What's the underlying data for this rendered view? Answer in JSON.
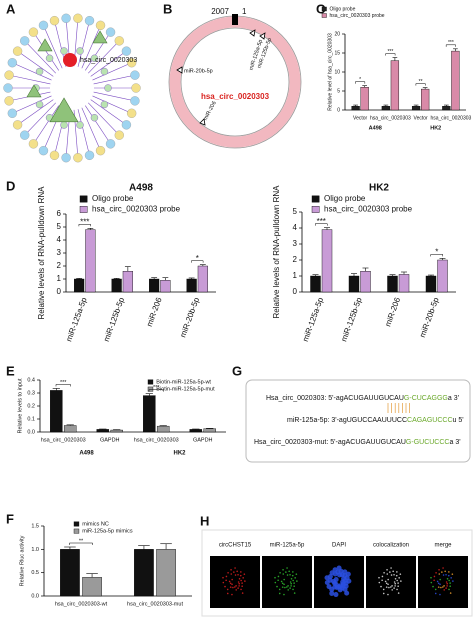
{
  "panel_labels": [
    "A",
    "B",
    "C",
    "D",
    "E",
    "F",
    "G",
    "H"
  ],
  "network": {
    "center_label": "hsa_circ_0020303"
  },
  "circle_map": {
    "start": "2007",
    "end": "1",
    "center_label": "hsa_circ_0020303",
    "sites": [
      "miR-125a-5p",
      "miR-125b-5p",
      "miR-20b-5p",
      "miR-206"
    ]
  },
  "sequence": {
    "rows": [
      {
        "name": "Hsa_circ_0020303:",
        "prefix": "5'-agACUGAUUGUCAU",
        "site": "G-CUCAGGG",
        "suffix": "a  3'"
      },
      {
        "name": "miR-125a-5p:",
        "prefix": "3'-agUGUCCAAUUUCC",
        "site": "CAGAGUCCC",
        "suffix": "u  5'"
      },
      {
        "name": "Hsa_circ_0020303-mut:",
        "prefix": "5'-agACUGAUUGUCAU",
        "site": "G-GUCUCCC",
        "suffix": "a  3'"
      }
    ]
  },
  "images": {
    "labels": [
      "circCHST15",
      "miR-125a-5p",
      "DAPI",
      "colocalization",
      "merge"
    ]
  },
  "chart_data": [
    {
      "type": "bar",
      "ylabel": "Relative level of hsa_circ_0020303",
      "categories": [
        "Vector",
        "hsa_circ_0020303",
        "Vector",
        "hsa_circ_0020303"
      ],
      "groups": [
        "A498",
        "HK2"
      ],
      "series": [
        {
          "name": "Oligo probe",
          "color": "#222222",
          "values": [
            1,
            1,
            1,
            1
          ],
          "errors": [
            0.3,
            0.3,
            0.3,
            0.3
          ]
        },
        {
          "name": "hsa_circ_0020303 probe",
          "color": "#d98aa8",
          "values": [
            6,
            13,
            5.5,
            15.5
          ],
          "errors": [
            0.4,
            0.8,
            0.4,
            0.6
          ]
        }
      ],
      "significance": [
        "*",
        "***",
        "**",
        "***"
      ],
      "ylim": [
        0,
        20
      ],
      "yticks": [
        0,
        5,
        10,
        15,
        20
      ]
    },
    {
      "type": "bar",
      "title": "A498",
      "ylabel": "Relative  levels of RNA-pulldown RNA",
      "categories": [
        "miR-125a-5p",
        "miR-125b-5p",
        "miR-206",
        "miR-20b-5p"
      ],
      "series": [
        {
          "name": "Oligo probe",
          "color": "#111111",
          "values": [
            1,
            1,
            1,
            1
          ],
          "errors": [
            0.05,
            0.05,
            0.1,
            0.08
          ]
        },
        {
          "name": "hsa_circ_0020303 probe",
          "color": "#c89bd6",
          "values": [
            4.8,
            1.6,
            0.9,
            2.0
          ],
          "errors": [
            0.1,
            0.35,
            0.2,
            0.1
          ]
        }
      ],
      "significance": [
        "***",
        null,
        null,
        "*"
      ],
      "ylim": [
        0,
        6
      ],
      "yticks": [
        0,
        1,
        2,
        3,
        4,
        5,
        6
      ]
    },
    {
      "type": "bar",
      "title": "HK2",
      "ylabel": "Relative  levels of RNA-pulldown RNA",
      "categories": [
        "miR-125a-5p",
        "miR-125b-5p",
        "miR-206",
        "miR-20b-5p"
      ],
      "series": [
        {
          "name": "Oligo probe",
          "color": "#111111",
          "values": [
            1,
            1,
            1,
            1
          ],
          "errors": [
            0.08,
            0.15,
            0.08,
            0.06
          ]
        },
        {
          "name": "hsa_circ_0020303 probe",
          "color": "#c89bd6",
          "values": [
            3.9,
            1.3,
            1.1,
            2.0
          ],
          "errors": [
            0.12,
            0.2,
            0.15,
            0.1
          ]
        }
      ],
      "significance": [
        "***",
        null,
        null,
        "*"
      ],
      "ylim": [
        0,
        5
      ],
      "yticks": [
        0,
        1,
        2,
        3,
        4,
        5
      ]
    },
    {
      "type": "bar",
      "ylabel": "Relative levels to input",
      "categories": [
        "hsa_circ_0020303",
        "GAPDH",
        "hsa_circ_0020303",
        "GAPDH"
      ],
      "groups": [
        "A498",
        "HK2"
      ],
      "series": [
        {
          "name": "Biotin-miR-125a-5p-wt",
          "color": "#111111",
          "values": [
            0.32,
            0.02,
            0.28,
            0.02
          ],
          "errors": [
            0.015,
            0.003,
            0.015,
            0.003
          ]
        },
        {
          "name": "Biotin-miR-125a-5p-mut",
          "color": "#999999",
          "values": [
            0.05,
            0.015,
            0.045,
            0.025
          ],
          "errors": [
            0.005,
            0.003,
            0.004,
            0.003
          ]
        }
      ],
      "significance": [
        "***",
        null,
        "***",
        null
      ],
      "ylim": [
        0,
        0.4
      ],
      "yticks": [
        {
          "value": 0,
          "label": "0.0"
        },
        0.1,
        0.2,
        0.3,
        0.4
      ]
    },
    {
      "type": "bar",
      "ylabel": "Relative Rluc activity",
      "categories": [
        "hsa_circ_0020303-wt",
        "hsa_circ_0020303-mut"
      ],
      "series": [
        {
          "name": "mimics NC",
          "color": "#111111",
          "values": [
            1.0,
            1.0
          ],
          "errors": [
            0.05,
            0.08
          ]
        },
        {
          "name": "miR-125a-5p mimics",
          "color": "#9a9a9a",
          "values": [
            0.4,
            1.0
          ],
          "errors": [
            0.08,
            0.12
          ]
        }
      ],
      "significance": [
        "**",
        null
      ],
      "ylim": [
        0,
        1.5
      ],
      "yticks": [
        {
          "value": 0,
          "label": "0.0"
        },
        {
          "value": 0.5,
          "label": "0.5"
        },
        {
          "value": 1,
          "label": "1.0"
        },
        1.5
      ]
    }
  ]
}
